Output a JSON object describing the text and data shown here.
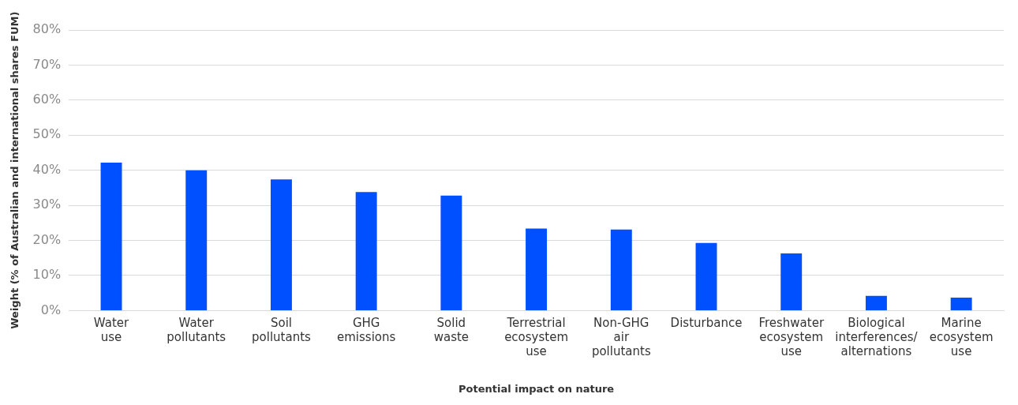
{
  "chart_data": {
    "type": "bar",
    "xlabel": "Potential impact on nature",
    "ylabel": "Weight (% of Australian and international shares FUM)",
    "categories": [
      "Water use",
      "Water pollutants",
      "Soil pollutants",
      "GHG emissions",
      "Solid waste",
      "Terrestrial ecosystem use",
      "Non-GHG air pollutants",
      "Disturbance",
      "Freshwater ecosystem use",
      "Biological interferences/ alternations",
      "Marine ecosystem use"
    ],
    "values": [
      42.2,
      40.0,
      37.4,
      33.8,
      32.8,
      23.4,
      23.1,
      19.3,
      16.3,
      4.2,
      3.7
    ],
    "color": "#0050ff",
    "ylim": [
      0,
      80
    ],
    "yticks": [
      {
        "value": 0,
        "label": "0%"
      },
      {
        "value": 10,
        "label": "10%"
      },
      {
        "value": 20,
        "label": "20%"
      },
      {
        "value": 30,
        "label": "30%"
      },
      {
        "value": 40,
        "label": "40%"
      },
      {
        "value": 50,
        "label": "50%"
      },
      {
        "value": 60,
        "label": "60%"
      },
      {
        "value": 70,
        "label": "70%"
      },
      {
        "value": 80,
        "label": "80%"
      }
    ],
    "grid": "y",
    "legend": false
  }
}
